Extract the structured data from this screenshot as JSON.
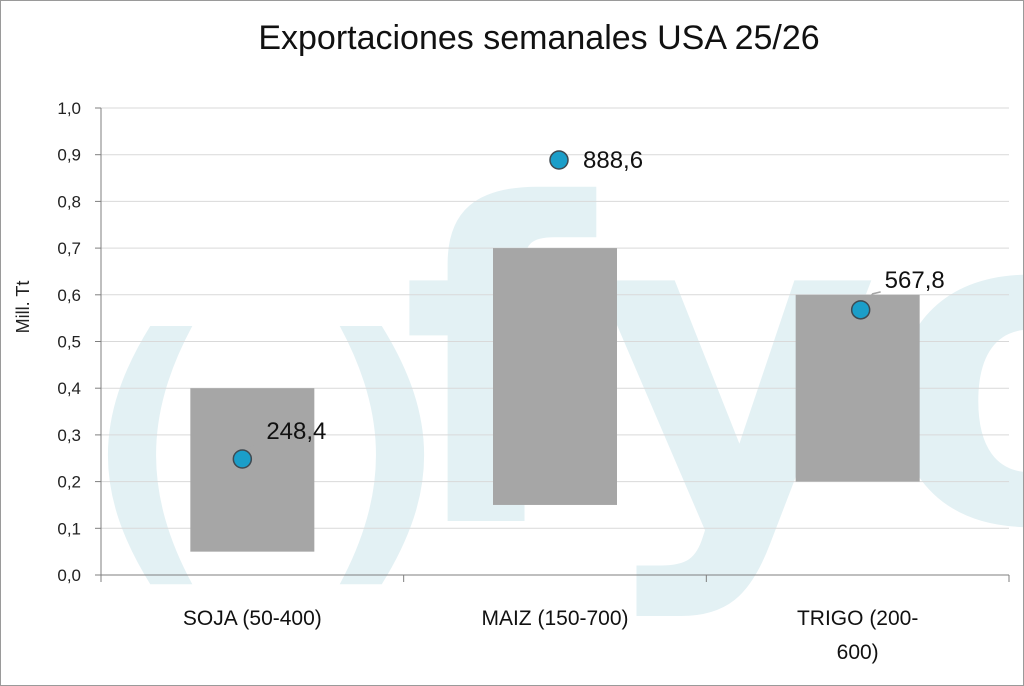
{
  "chart_data": {
    "type": "bar",
    "title": "Exportaciones semanales USA  25/26",
    "xlabel": "",
    "ylabel": "Mill. Tt",
    "ylim": [
      0,
      1.0
    ],
    "yticks": [
      "0,0",
      "0,1",
      "0,2",
      "0,3",
      "0,4",
      "0,5",
      "0,6",
      "0,7",
      "0,8",
      "0,9",
      "1,0"
    ],
    "grid": true,
    "categories": [
      {
        "line1": "SOJA (50-400)",
        "line2": ""
      },
      {
        "line1": "MAIZ (150-700)",
        "line2": ""
      },
      {
        "line1": "TRIGO (200-",
        "line2": "600)"
      }
    ],
    "series": [
      {
        "kind": "floating-range",
        "low": [
          0.05,
          0.15,
          0.2
        ],
        "high": [
          0.4,
          0.7,
          0.6
        ],
        "color": "#a6a6a6"
      },
      {
        "kind": "point",
        "values": [
          0.2484,
          0.8886,
          0.5678
        ],
        "labels": [
          "248,4",
          "888,6",
          "567,8"
        ],
        "color": "#1b9ec9"
      }
    ]
  },
  "watermark": {
    "text": "fyo",
    "color": "#e3f1f4"
  }
}
